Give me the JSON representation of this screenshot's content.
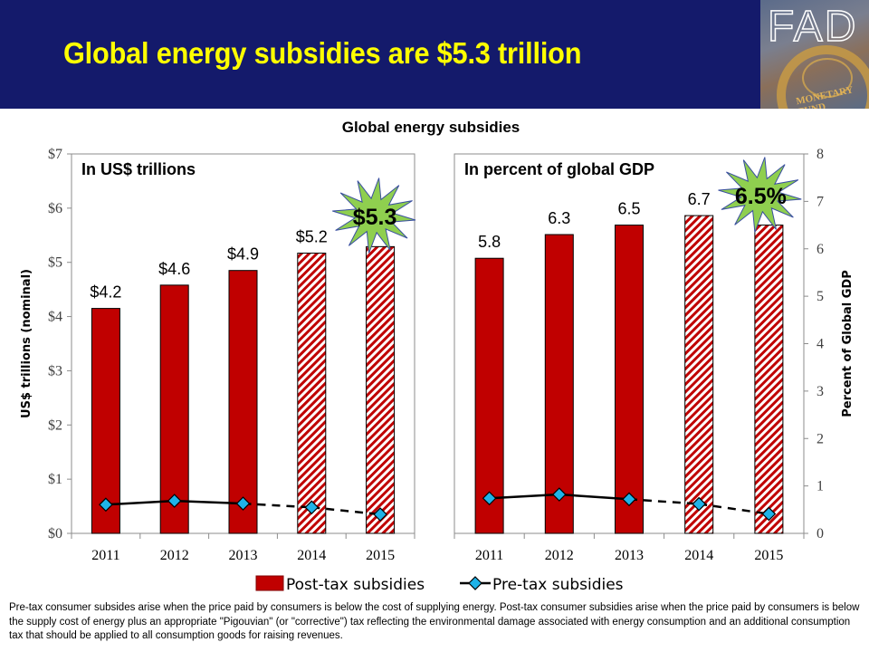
{
  "header": {
    "title": "Global energy subsidies are $5.3 trillion",
    "logo_text": "FAD",
    "logo_seal_text": "MONETARY FUND"
  },
  "chart_data": {
    "title": "Global energy subsidies",
    "categories": [
      "2011",
      "2012",
      "2013",
      "2014",
      "2015"
    ],
    "legend": {
      "position": "bottom",
      "entries": [
        "Post-tax subsidies",
        "Pre-tax subsidies"
      ]
    },
    "note": "2014 and 2015 bars are hatched (projections); pre-tax line is dashed from 2013 onward",
    "colors": {
      "post_tax": "#c00000",
      "pre_tax_marker": "#1fb3e8",
      "pre_tax_line": "#000000",
      "burst": "#8fcf4f",
      "burst_outline": "#3a4fa0"
    },
    "panels": [
      {
        "type": "bar",
        "subtitle": "In US$ trillions",
        "ylabel": "US$ trillions (nominal)",
        "axis_side": "left",
        "ylim": [
          0,
          7
        ],
        "yticks": [
          0,
          1,
          2,
          3,
          4,
          5,
          6,
          7
        ],
        "ytick_labels": [
          "$0",
          "$1",
          "$2",
          "$3",
          "$4",
          "$5",
          "$6",
          "$7"
        ],
        "series": [
          {
            "name": "Post-tax subsidies",
            "kind": "bar",
            "values": [
              4.15,
              4.58,
              4.85,
              5.17,
              5.29
            ],
            "hatched": [
              false,
              false,
              false,
              true,
              true
            ]
          },
          {
            "name": "Pre-tax subsidies",
            "kind": "line",
            "values": [
              0.53,
              0.6,
              0.55,
              0.48,
              0.35
            ],
            "dashed_from_index": 2
          }
        ],
        "data_labels": [
          "$4.2",
          "$4.6",
          "$4.9",
          "$5.2",
          null
        ],
        "callout": {
          "label": "$5.3",
          "category": "2015"
        }
      },
      {
        "type": "bar",
        "subtitle": "In percent of global GDP",
        "ylabel": "Percent of Global GDP",
        "axis_side": "right",
        "ylim": [
          0,
          8
        ],
        "yticks": [
          0,
          1,
          2,
          3,
          4,
          5,
          6,
          7,
          8
        ],
        "ytick_labels": [
          "0",
          "1",
          "2",
          "3",
          "4",
          "5",
          "6",
          "7",
          "8"
        ],
        "series": [
          {
            "name": "Post-tax subsidies",
            "kind": "bar",
            "values": [
              5.8,
              6.3,
              6.5,
              6.7,
              6.5
            ],
            "hatched": [
              false,
              false,
              false,
              true,
              true
            ]
          },
          {
            "name": "Pre-tax subsidies",
            "kind": "line",
            "values": [
              0.74,
              0.82,
              0.72,
              0.62,
              0.41
            ],
            "dashed_from_index": 2
          }
        ],
        "data_labels": [
          "5.8",
          "6.3",
          "6.5",
          "6.7",
          null
        ],
        "callout": {
          "label": "6.5%",
          "category": "2015"
        }
      }
    ]
  },
  "footnote": "Pre-tax consumer subsides arise when the price paid by consumers is below the cost of supplying energy. Post-tax consumer subsidies arise when the price paid by consumers is below the supply cost of energy plus an appropriate \"Pigouvian\" (or \"corrective\") tax reflecting the environmental damage associated with energy consumption and an additional consumption tax that should be applied to all consumption goods for raising revenues."
}
